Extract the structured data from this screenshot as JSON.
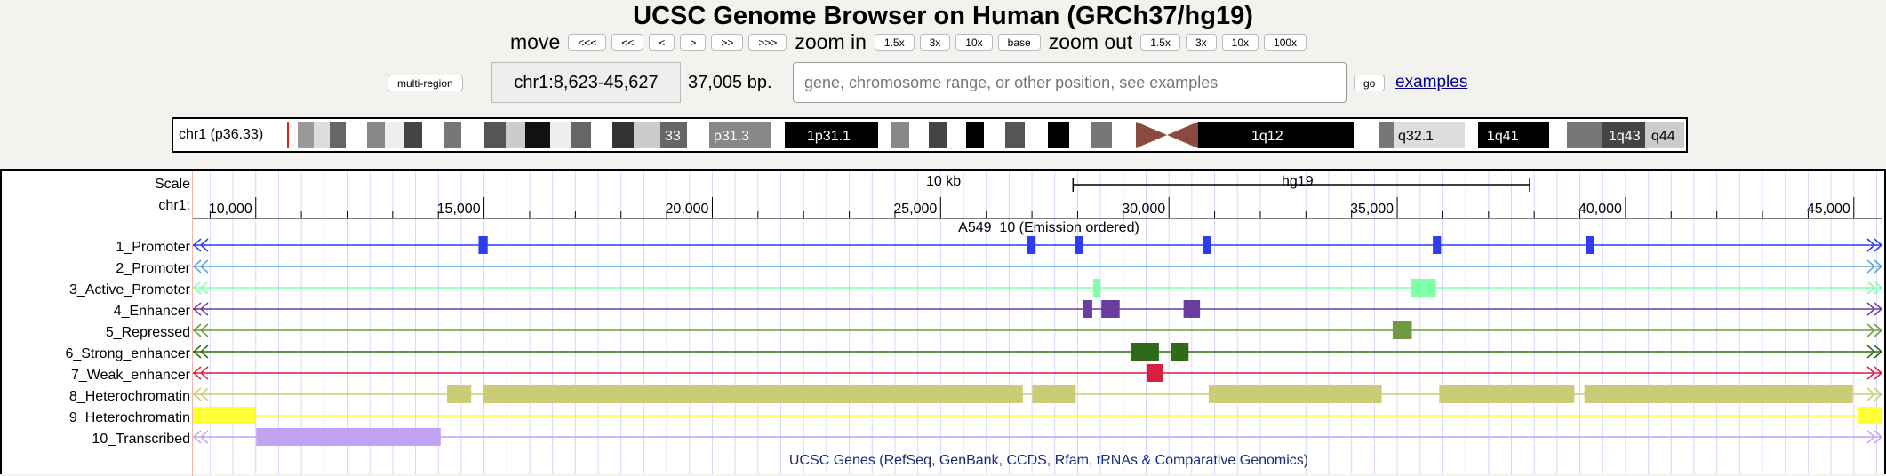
{
  "title": "UCSC Genome Browser on Human (GRCh37/hg19)",
  "nav": {
    "move_label": "move",
    "move_buttons": [
      "<<<",
      "<<",
      "<",
      ">",
      ">>",
      ">>>"
    ],
    "zoom_in_label": "zoom in",
    "zoom_in_buttons": [
      "1.5x",
      "3x",
      "10x",
      "base"
    ],
    "zoom_out_label": "zoom out",
    "zoom_out_buttons": [
      "1.5x",
      "3x",
      "10x",
      "100x"
    ]
  },
  "position": {
    "multi_region_label": "multi-region",
    "value": "chr1:8,623-45,627",
    "size": "37,005 bp.",
    "search_placeholder": "gene, chromosome range, or other position, see examples",
    "go_label": "go",
    "examples_label": "examples"
  },
  "ideogram": {
    "label": "chr1 (p36.33)",
    "band_labels": [
      "33",
      "p31.3",
      "1p31.1",
      "1q12",
      "q32.1",
      "1q41",
      "1q43",
      "q44"
    ]
  },
  "ruler": {
    "scale_label": "Scale",
    "chr_label": "chr1:",
    "scale_bar_text": "10 kb",
    "assembly": "hg19",
    "tick_labels": [
      "10,000",
      "15,000",
      "20,000",
      "25,000",
      "30,000",
      "35,000",
      "40,000",
      "45,000"
    ],
    "tick_values": [
      10000,
      15000,
      20000,
      25000,
      30000,
      35000,
      40000,
      45000
    ],
    "view_start": 8623,
    "view_end": 45627
  },
  "hmm_track": {
    "title": "A549_10 (Emission ordered)",
    "states": [
      {
        "label": "1_Promoter",
        "color": "#2d3dee",
        "blocks": [
          [
            14880,
            15080
          ],
          [
            26900,
            27080
          ],
          [
            27940,
            28120
          ],
          [
            30740,
            30920
          ],
          [
            35780,
            35960
          ],
          [
            39130,
            39310
          ]
        ]
      },
      {
        "label": "2_Promoter",
        "color": "#5ba4d6",
        "blocks": []
      },
      {
        "label": "3_Active_Promoter",
        "color": "#7fffa8",
        "blocks": [
          [
            28340,
            28500
          ],
          [
            35300,
            35850
          ]
        ]
      },
      {
        "label": "4_Enhancer",
        "color": "#6a3c9e",
        "blocks": [
          [
            28120,
            28320
          ],
          [
            28520,
            28920
          ],
          [
            30320,
            30680
          ]
        ]
      },
      {
        "label": "5_Repressed",
        "color": "#6e9a41",
        "blocks": [
          [
            34900,
            35320
          ]
        ]
      },
      {
        "label": "6_Strong_enhancer",
        "color": "#2e6a17",
        "blocks": [
          [
            29160,
            29780
          ],
          [
            30050,
            30430
          ]
        ]
      },
      {
        "label": "7_Weak_enhancer",
        "color": "#d6213d",
        "blocks": [
          [
            29520,
            29880
          ]
        ]
      },
      {
        "label": "8_Heterochromatin",
        "color": "#cccc77",
        "blocks": [
          [
            14190,
            14720
          ],
          [
            14980,
            26800
          ],
          [
            27010,
            27960
          ],
          [
            30870,
            34660
          ],
          [
            35920,
            38880
          ],
          [
            39100,
            44980
          ]
        ]
      },
      {
        "label": "9_Heterochromatin",
        "color": "#ffff33",
        "blocks": [
          [
            8623,
            9990
          ],
          [
            45080,
            45627
          ]
        ]
      },
      {
        "label": "10_Transcribed",
        "color": "#c4a2f3",
        "blocks": [
          [
            10010,
            14050
          ]
        ]
      }
    ]
  },
  "genes_track_title": "UCSC Genes (RefSeq, GenBank, CCDS, Rfam, tRNAs & Comparative Genomics)"
}
